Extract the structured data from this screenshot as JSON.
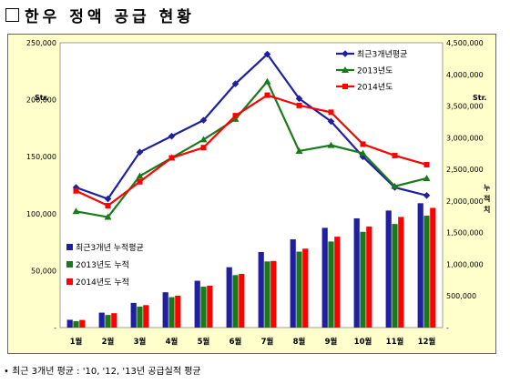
{
  "header": {
    "title": "한우 정액 공급 현황"
  },
  "footnote": "• 최근 3개년 평균 : '10, '12, '13년 공급실적 평균",
  "chart_data": {
    "type": "bar+line",
    "categories": [
      "1월",
      "2월",
      "3월",
      "4월",
      "5월",
      "6월",
      "7월",
      "8월",
      "9월",
      "10월",
      "11월",
      "12월"
    ],
    "left_axis": {
      "label": "Str.",
      "min": 0,
      "max": 250000,
      "ticks": [
        "-",
        "50,000",
        "100,000",
        "150,000",
        "200,000",
        "250,000"
      ]
    },
    "right_axis": {
      "label": "Str.",
      "label2": [
        "누",
        "적",
        "치"
      ],
      "min": 0,
      "max": 4500000,
      "ticks": [
        "-",
        "500,000",
        "1,000,000",
        "1,500,000",
        "2,000,000",
        "2,500,000",
        "3,000,000",
        "3,500,000",
        "4,000,000",
        "4,500,000"
      ]
    },
    "line_series": [
      {
        "name": "최근3개년평균",
        "color": "#1f1f9f",
        "marker": "diamond",
        "values": [
          123000,
          113000,
          154000,
          168000,
          182000,
          214000,
          240000,
          201000,
          181000,
          150000,
          123000,
          116000
        ]
      },
      {
        "name": "2013년도",
        "color": "#1a7a1a",
        "marker": "triangle",
        "values": [
          102000,
          97000,
          133000,
          149000,
          165000,
          183000,
          216000,
          155000,
          160000,
          153000,
          124000,
          131000
        ]
      },
      {
        "name": "2014년도",
        "color": "#ff0000",
        "marker": "square",
        "values": [
          120000,
          107000,
          128000,
          149000,
          158000,
          186000,
          204000,
          195000,
          189000,
          161000,
          151000,
          143000
        ]
      }
    ],
    "bar_series": [
      {
        "name": "최근3개년 누적평균",
        "color": "#1f1f9f",
        "values": [
          123000,
          236000,
          390000,
          558000,
          740000,
          954000,
          1194000,
          1395000,
          1576000,
          1726000,
          1849000,
          1965000
        ]
      },
      {
        "name": "2013년도 누적",
        "color": "#1a7a1a",
        "values": [
          102000,
          199000,
          332000,
          481000,
          646000,
          829000,
          1045000,
          1200000,
          1360000,
          1513000,
          1637000,
          1768000
        ]
      },
      {
        "name": "2014년도 누적",
        "color": "#ff0000",
        "values": [
          120000,
          227000,
          355000,
          504000,
          662000,
          848000,
          1052000,
          1247000,
          1436000,
          1597000,
          1748000,
          1891000
        ]
      }
    ]
  }
}
